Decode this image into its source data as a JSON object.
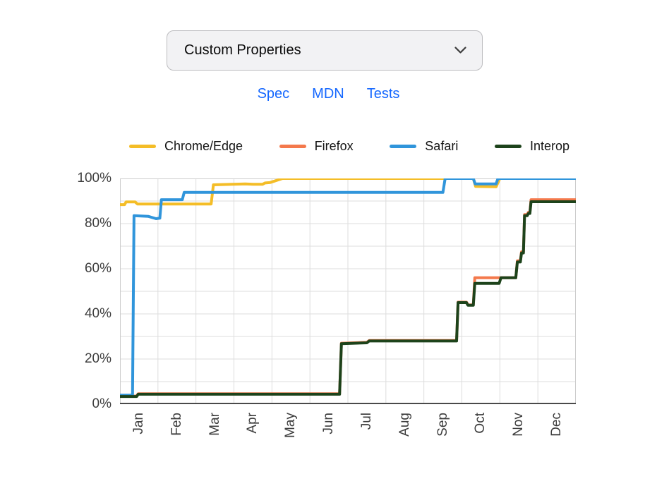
{
  "select": {
    "value": "Custom Properties"
  },
  "links": {
    "spec": "Spec",
    "mdn": "MDN",
    "tests": "Tests"
  },
  "chart_data": {
    "type": "line",
    "title": "",
    "xlabel": "",
    "ylabel": "",
    "categories": [
      "Jan",
      "Feb",
      "Mar",
      "Apr",
      "May",
      "Jun",
      "Jul",
      "Aug",
      "Sep",
      "Oct",
      "Nov",
      "Dec"
    ],
    "ylim": [
      0,
      100
    ],
    "yticks": {
      "values": [
        100,
        80,
        60,
        40,
        20,
        0
      ],
      "labels": [
        "100%",
        "80%",
        "60%",
        "40%",
        "20%",
        "0%"
      ]
    },
    "grid": true,
    "legend_position": "top",
    "x_unit": "months 0-12 across one year",
    "y_unit": "percent of tests passing",
    "colors": {
      "grid": "#dddddd",
      "plot_border": "#cccccc",
      "axis": "#4a4a4a"
    },
    "series": [
      {
        "name": "Chrome/Edge",
        "color": "#f4bd27",
        "points": [
          [
            0,
            88.4
          ],
          [
            0.12,
            88.4
          ],
          [
            0.16,
            89.6
          ],
          [
            0.4,
            89.6
          ],
          [
            0.46,
            88.7
          ],
          [
            2.4,
            88.7
          ],
          [
            2.46,
            97.2
          ],
          [
            3.3,
            97.6
          ],
          [
            3.5,
            97.4
          ],
          [
            3.75,
            97.4
          ],
          [
            3.82,
            98.0
          ],
          [
            3.95,
            98.2
          ],
          [
            4.28,
            100
          ],
          [
            9.3,
            100
          ],
          [
            9.36,
            96.5
          ],
          [
            9.9,
            96.3
          ],
          [
            10.0,
            100
          ],
          [
            12,
            100
          ]
        ]
      },
      {
        "name": "Firefox",
        "color": "#f4794c",
        "points": [
          [
            0,
            3.6
          ],
          [
            0.44,
            3.6
          ],
          [
            0.48,
            4.6
          ],
          [
            5.78,
            4.6
          ],
          [
            5.83,
            27.0
          ],
          [
            6.5,
            27.4
          ],
          [
            6.56,
            28.2
          ],
          [
            8.86,
            28.2
          ],
          [
            8.9,
            45.2
          ],
          [
            9.12,
            45.2
          ],
          [
            9.16,
            44.0
          ],
          [
            9.3,
            44.0
          ],
          [
            9.34,
            56.0
          ],
          [
            10.42,
            56.0
          ],
          [
            10.46,
            63.5
          ],
          [
            10.54,
            63.5
          ],
          [
            10.57,
            67.5
          ],
          [
            10.62,
            67.5
          ],
          [
            10.65,
            84.0
          ],
          [
            10.72,
            84.0
          ],
          [
            10.75,
            85.0
          ],
          [
            10.79,
            85.0
          ],
          [
            10.82,
            90.6
          ],
          [
            12,
            90.6
          ]
        ]
      },
      {
        "name": "Safari",
        "color": "#3095db",
        "points": [
          [
            0,
            4.0
          ],
          [
            0.33,
            4.0
          ],
          [
            0.37,
            83.5
          ],
          [
            0.75,
            83.2
          ],
          [
            0.95,
            82.2
          ],
          [
            1.05,
            82.4
          ],
          [
            1.09,
            90.6
          ],
          [
            1.64,
            90.6
          ],
          [
            1.69,
            93.8
          ],
          [
            8.5,
            93.8
          ],
          [
            8.56,
            100
          ],
          [
            9.3,
            100
          ],
          [
            9.35,
            97.6
          ],
          [
            9.9,
            97.6
          ],
          [
            9.95,
            100
          ],
          [
            12,
            100
          ]
        ]
      },
      {
        "name": "Interop",
        "color": "#1d431b",
        "points": [
          [
            0,
            3.4
          ],
          [
            0.44,
            3.4
          ],
          [
            0.48,
            4.4
          ],
          [
            5.78,
            4.4
          ],
          [
            5.83,
            26.8
          ],
          [
            6.5,
            27.2
          ],
          [
            6.56,
            28.0
          ],
          [
            8.86,
            28.0
          ],
          [
            8.9,
            45.0
          ],
          [
            9.12,
            45.0
          ],
          [
            9.16,
            43.8
          ],
          [
            9.3,
            43.8
          ],
          [
            9.34,
            53.5
          ],
          [
            9.98,
            53.5
          ],
          [
            10.03,
            56.0
          ],
          [
            10.42,
            56.0
          ],
          [
            10.46,
            63.0
          ],
          [
            10.54,
            63.0
          ],
          [
            10.57,
            67.0
          ],
          [
            10.62,
            67.0
          ],
          [
            10.65,
            83.5
          ],
          [
            10.72,
            83.5
          ],
          [
            10.75,
            84.5
          ],
          [
            10.79,
            84.5
          ],
          [
            10.82,
            89.7
          ],
          [
            12,
            89.7
          ]
        ]
      }
    ]
  }
}
